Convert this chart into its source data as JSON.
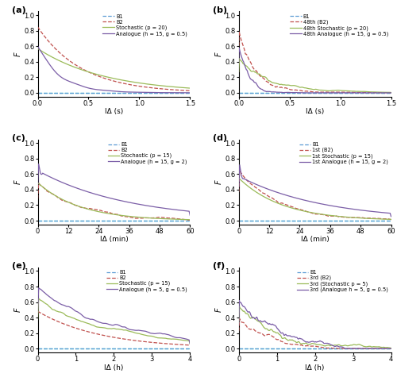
{
  "panels": {
    "a": {
      "label": "(a)",
      "xlabel": "lΔ (s)",
      "ylabel": "F",
      "xlim": [
        0,
        1.5
      ],
      "ylim": [
        -0.05,
        1.05
      ],
      "yticks": [
        0.0,
        0.2,
        0.4,
        0.6,
        0.8,
        1.0
      ],
      "xticks": [
        0.0,
        0.5,
        1.0,
        1.5
      ],
      "legend": [
        "B1",
        "B2",
        "Stochastic (p = 20)",
        "Analogue (h = 15, g = 0.5)"
      ]
    },
    "b": {
      "label": "(b)",
      "xlabel": "lΔ (s)",
      "ylabel": "F",
      "xlim": [
        0,
        1.5
      ],
      "ylim": [
        -0.05,
        1.05
      ],
      "yticks": [
        0.0,
        0.2,
        0.4,
        0.6,
        0.8,
        1.0
      ],
      "xticks": [
        0.0,
        0.5,
        1.0,
        1.5
      ],
      "legend": [
        "B1",
        "48th (B2)",
        "48th Stochastic (p = 20)",
        "48th Analogue (h = 15, g = 0.5)"
      ]
    },
    "c": {
      "label": "(c)",
      "xlabel": "lΔ (min)",
      "ylabel": "F",
      "xlim": [
        0,
        60
      ],
      "ylim": [
        -0.05,
        1.05
      ],
      "yticks": [
        0.0,
        0.2,
        0.4,
        0.6,
        0.8,
        1.0
      ],
      "xticks": [
        0,
        12,
        24,
        36,
        48,
        60
      ],
      "legend": [
        "B1",
        "B2",
        "Stochastic (p = 15)",
        "Analogue (h = 15, g = 2)"
      ]
    },
    "d": {
      "label": "(d)",
      "xlabel": "lΔ (min)",
      "ylabel": "F",
      "xlim": [
        0,
        60
      ],
      "ylim": [
        -0.05,
        1.05
      ],
      "yticks": [
        0.0,
        0.2,
        0.4,
        0.6,
        0.8,
        1.0
      ],
      "xticks": [
        0,
        12,
        24,
        36,
        48,
        60
      ],
      "legend": [
        "B1",
        "1st (B2)",
        "1st Stochastic (p = 15)",
        "1st Analogue (h = 15, g = 2)"
      ]
    },
    "e": {
      "label": "(e)",
      "xlabel": "lΔ (h)",
      "ylabel": "F",
      "xlim": [
        0,
        4
      ],
      "ylim": [
        -0.05,
        1.05
      ],
      "yticks": [
        0.0,
        0.2,
        0.4,
        0.6,
        0.8,
        1.0
      ],
      "xticks": [
        0,
        1,
        2,
        3,
        4
      ],
      "legend": [
        "B1",
        "B2",
        "Stochastic (p = 15)",
        "Analogue (h = 5, g = 0.5)"
      ]
    },
    "f": {
      "label": "(f)",
      "xlabel": "lΔ (h)",
      "ylabel": "F",
      "xlim": [
        0,
        4
      ],
      "ylim": [
        -0.05,
        1.05
      ],
      "yticks": [
        0.0,
        0.2,
        0.4,
        0.6,
        0.8,
        1.0
      ],
      "xticks": [
        0,
        1,
        2,
        3,
        4
      ],
      "legend": [
        "B1",
        "3rd (B2)",
        "3rd (Stochastic p = 5)",
        "3rd (Analogue h = 5, g = 0.5)"
      ]
    }
  },
  "colors": {
    "B1": "#5B9BD5",
    "B2": "#C0504D",
    "stochastic": "#9BBB59",
    "analogue": "#7B5EA7"
  }
}
